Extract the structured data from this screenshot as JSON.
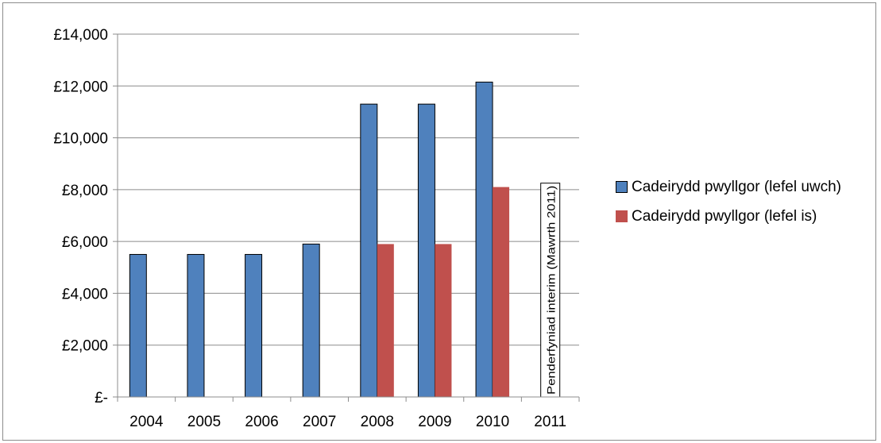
{
  "chart_data": {
    "type": "bar",
    "categories": [
      "2004",
      "2005",
      "2006",
      "2007",
      "2008",
      "2009",
      "2010",
      "2011"
    ],
    "series": [
      {
        "name": "Cadeirydd pwyllgor (lefel uwch)",
        "color": "#4f81bd",
        "values": [
          5500,
          5500,
          5500,
          5900,
          11300,
          11300,
          12150,
          null
        ]
      },
      {
        "name": "Cadeirydd pwyllgor (lefel is)",
        "color": "#c0504d",
        "values": [
          null,
          null,
          null,
          null,
          5900,
          5900,
          8100,
          null
        ]
      }
    ],
    "annotation": {
      "category": "2011",
      "text": "Penderfyniad interim (Mawrth 2011)",
      "value": 8250
    },
    "ylim": [
      0,
      14000
    ],
    "yticks": [
      0,
      2000,
      4000,
      6000,
      8000,
      10000,
      12000,
      14000
    ],
    "ytick_labels": [
      "£-",
      "£2,000",
      "£4,000",
      "£6,000",
      "£8,000",
      "£10,000",
      "£12,000",
      "£14,000"
    ],
    "grid": true,
    "legend_position": "right"
  }
}
